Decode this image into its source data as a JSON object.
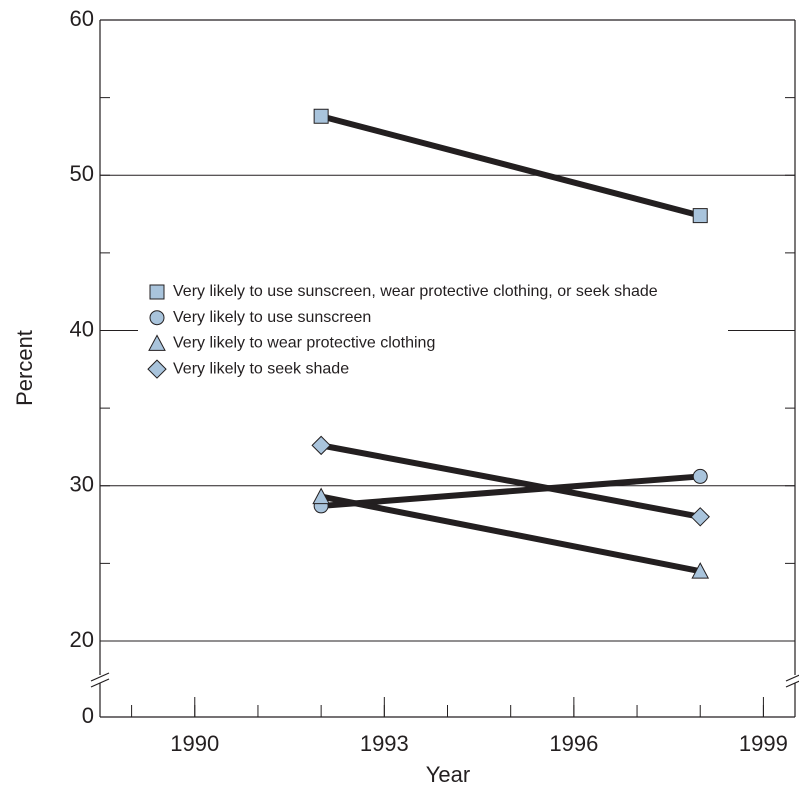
{
  "chart_data": {
    "type": "line",
    "x_label": "Year",
    "y_label": "Percent",
    "x": [
      1992,
      1998
    ],
    "series": [
      {
        "name": "Very likely to use sunscreen, wear protective clothing, or seek shade",
        "color": "#231f20",
        "marker": "square",
        "marker_color": "#a9c4dc",
        "values": [
          53.8,
          47.4
        ]
      },
      {
        "name": "Very likely to use sunscreen",
        "color": "#231f20",
        "marker": "circle",
        "marker_color": "#a9c4dc",
        "values": [
          28.7,
          30.6
        ]
      },
      {
        "name": "Very likely to wear protective clothing",
        "color": "#231f20",
        "marker": "triangle",
        "marker_color": "#a9c4dc",
        "values": [
          29.3,
          24.5
        ]
      },
      {
        "name": "Very likely to seek shade",
        "color": "#231f20",
        "marker": "diamond",
        "marker_color": "#a9c4dc",
        "values": [
          32.6,
          28.0
        ]
      }
    ],
    "xlim": [
      1988.5,
      1999.5
    ],
    "xticks": [
      1990,
      1993,
      1996,
      1999
    ],
    "xminorticks": [
      1989,
      1990,
      1991,
      1992,
      1993,
      1994,
      1995,
      1996,
      1997,
      1998,
      1999
    ],
    "ylim": [
      0,
      60
    ],
    "axis_break": [
      0,
      20
    ],
    "yticks": [
      0,
      20,
      30,
      40,
      50,
      60
    ],
    "yminorticks": [
      25,
      35,
      45,
      55
    ],
    "grid": true,
    "legend": "center-left"
  }
}
